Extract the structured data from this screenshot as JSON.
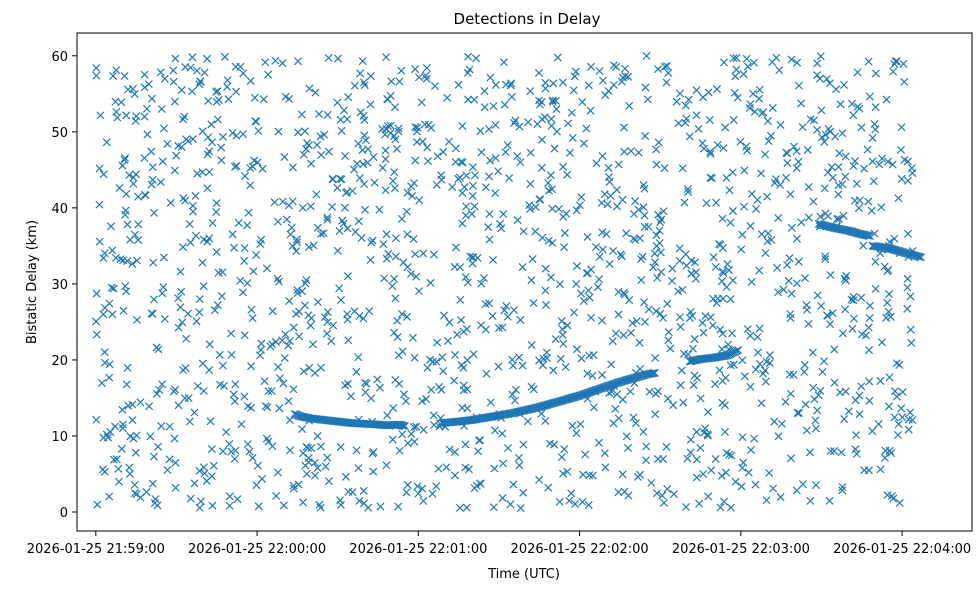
{
  "chart_data": {
    "type": "scatter",
    "title": "Detections in Delay",
    "xlabel": "Time (UTC)",
    "ylabel": "Bistatic Delay (km)",
    "x_ticks": [
      {
        "label": "2026-01-25 21:59:00",
        "value": "21:59:00"
      },
      {
        "label": "2026-01-25 22:00:00",
        "value": "22:00:00"
      },
      {
        "label": "2026-01-25 22:01:00",
        "value": "22:01:00"
      },
      {
        "label": "2026-01-25 22:02:00",
        "value": "22:02:00"
      },
      {
        "label": "2026-01-25 22:03:00",
        "value": "22:03:00"
      },
      {
        "label": "2026-01-25 22:04:00",
        "value": "22:04:00"
      }
    ],
    "y_ticks": [
      0,
      10,
      20,
      30,
      40,
      50,
      60
    ],
    "xlim": [
      "2026-01-25 21:58:53",
      "2026-01-25 22:04:26"
    ],
    "ylim": [
      -2.5,
      63
    ],
    "marker": "x",
    "color": "#1f77b4",
    "grid": false,
    "noise": {
      "time_range": [
        "2026-01-25 21:59:00",
        "2026-01-25 22:04:04"
      ],
      "delay_range": [
        0.5,
        60
      ],
      "approx_count": 1600
    },
    "series": [
      {
        "points": [
          [
            "22:00:14",
            12.9
          ],
          [
            "22:00:16",
            12.6
          ],
          [
            "22:00:20",
            12.3
          ],
          [
            "22:00:25",
            12.1
          ],
          [
            "22:00:30",
            11.9
          ],
          [
            "22:00:35",
            11.7
          ],
          [
            "22:00:40",
            11.6
          ],
          [
            "22:00:45",
            11.5
          ],
          [
            "22:00:48",
            11.4
          ],
          [
            "22:00:53",
            11.5
          ],
          [
            "22:00:55",
            11.3
          ]
        ]
      },
      {
        "points": [
          [
            "22:01:09",
            11.7
          ],
          [
            "22:01:15",
            11.9
          ],
          [
            "22:01:20",
            12.1
          ],
          [
            "22:01:25",
            12.4
          ],
          [
            "22:01:30",
            12.7
          ],
          [
            "22:01:35",
            13.0
          ],
          [
            "22:01:40",
            13.4
          ],
          [
            "22:01:45",
            13.8
          ],
          [
            "22:01:50",
            14.3
          ],
          [
            "22:01:55",
            14.8
          ],
          [
            "22:02:00",
            15.3
          ],
          [
            "22:02:05",
            15.9
          ],
          [
            "22:02:10",
            16.5
          ],
          [
            "22:02:15",
            17.1
          ],
          [
            "22:02:20",
            17.6
          ],
          [
            "22:02:25",
            18.1
          ],
          [
            "22:02:28",
            18.3
          ]
        ]
      },
      {
        "points": [
          [
            "22:02:41",
            19.8
          ],
          [
            "22:02:45",
            20.1
          ],
          [
            "22:02:50",
            20.3
          ],
          [
            "22:02:55",
            20.6
          ],
          [
            "22:02:59",
            21.3
          ]
        ]
      },
      {
        "points": [
          [
            "22:03:29",
            37.9
          ],
          [
            "22:03:33",
            37.5
          ],
          [
            "22:03:37",
            37.2
          ],
          [
            "22:03:40",
            37.0
          ],
          [
            "22:03:44",
            36.6
          ],
          [
            "22:03:48",
            36.3
          ]
        ]
      },
      {
        "points": [
          [
            "22:03:49",
            35.0
          ],
          [
            "22:03:53",
            34.8
          ],
          [
            "22:03:56",
            34.6
          ],
          [
            "22:04:00",
            34.2
          ],
          [
            "22:04:04",
            33.8
          ],
          [
            "22:04:07",
            33.5
          ]
        ]
      }
    ]
  }
}
